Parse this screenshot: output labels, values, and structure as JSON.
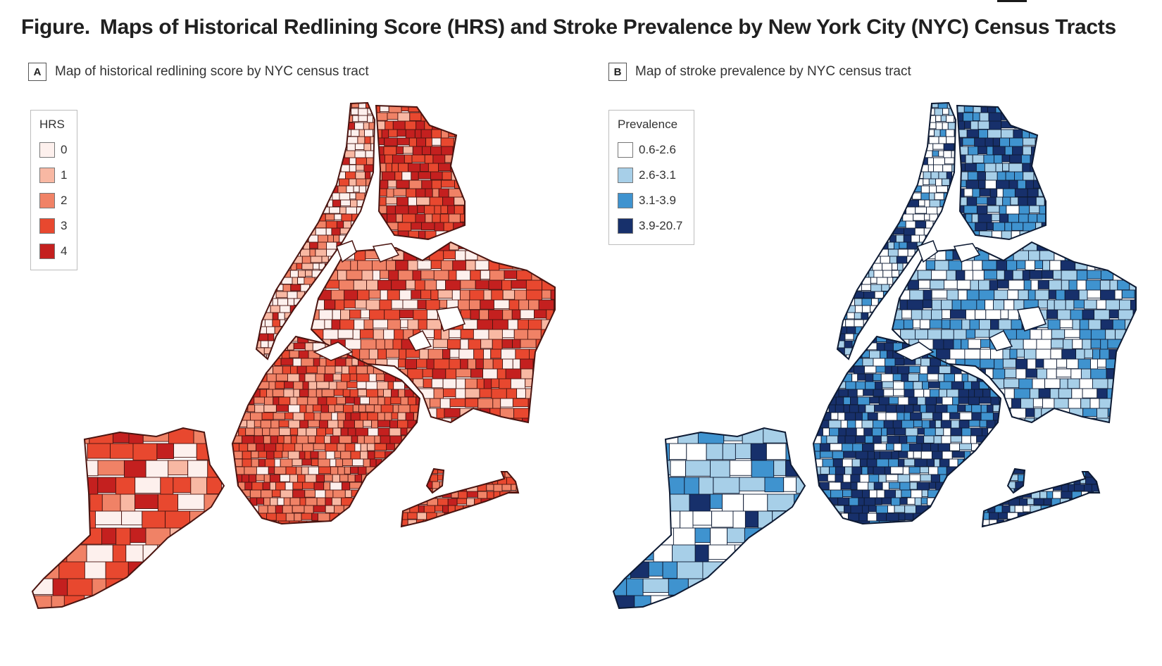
{
  "figure": {
    "lead": "Figure.",
    "title": "Maps of Historical Redlining Score (HRS) and Stroke Prevalence by New York City (NYC) Census Tracts"
  },
  "panel_a": {
    "letter": "A",
    "title": "Map of historical redlining score by NYC census tract",
    "legend": {
      "title": "HRS",
      "items": [
        {
          "label": "0",
          "color": "#fdf0ed"
        },
        {
          "label": "1",
          "color": "#f8b8a3"
        },
        {
          "label": "2",
          "color": "#f08266"
        },
        {
          "label": "3",
          "color": "#e8482f"
        },
        {
          "label": "4",
          "color": "#c4201f"
        }
      ]
    }
  },
  "panel_b": {
    "letter": "B",
    "title": "Map of stroke prevalence by NYC census tract",
    "legend": {
      "title": "Prevalence",
      "items": [
        {
          "label": "0.6-2.6",
          "color": "#ffffff"
        },
        {
          "label": "2.6-3.1",
          "color": "#a7cfe8"
        },
        {
          "label": "3.1-3.9",
          "color": "#3f93cf"
        },
        {
          "label": "3.9-20.7",
          "color": "#17306b"
        }
      ]
    }
  }
}
